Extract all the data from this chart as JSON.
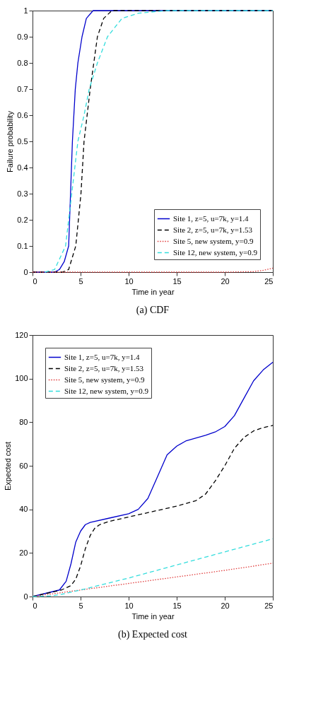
{
  "chart_data": [
    {
      "type": "line",
      "title": "(a) CDF",
      "xlabel": "Time in year",
      "ylabel": "Failure probability",
      "xlim": [
        0,
        25
      ],
      "xticks": [
        0,
        5,
        10,
        15,
        20,
        25
      ],
      "ylim": [
        0,
        1
      ],
      "yticks": [
        0,
        0.1,
        0.2,
        0.3,
        0.4,
        0.5,
        0.6,
        0.7,
        0.8,
        0.9,
        1
      ],
      "grid": false,
      "legend": "bottom right",
      "marker": "none",
      "series": [
        {
          "name": "Site 1, z=5, u=7k, y=1.4",
          "color": "#0000cc",
          "line_style": "solid",
          "x": [
            0,
            2.3,
            2.8,
            3.3,
            3.76,
            4.15,
            4.45,
            4.72,
            5.15,
            5.6,
            6.3,
            25
          ],
          "values": [
            0,
            0,
            0.01,
            0.04,
            0.1,
            0.5,
            0.7,
            0.8,
            0.9,
            0.97,
            1,
            1
          ]
        },
        {
          "name": "Site 2, z=5, u=7k, y=1.53",
          "color": "#000000",
          "line_style": "dashed",
          "x": [
            0,
            3.1,
            3.76,
            4.5,
            5.04,
            5.36,
            6.0,
            6.75,
            7.4,
            8.25,
            25
          ],
          "values": [
            0,
            0,
            0.01,
            0.1,
            0.3,
            0.5,
            0.7,
            0.9,
            0.97,
            1,
            1
          ]
        },
        {
          "name": "Site 5, new system, y=0.9",
          "color": "#e03c3c",
          "line_style": "dotted",
          "x": [
            0,
            20,
            23,
            24,
            25
          ],
          "values": [
            0,
            0,
            0.002,
            0.007,
            0.015
          ]
        },
        {
          "name": "Site 12, new system, y=0.9",
          "color": "#33dddd",
          "line_style": "dashed",
          "x": [
            1.3,
            2.3,
            3.44,
            4.08,
            4.72,
            5.36,
            5.9,
            6.75,
            7.8,
            9.3,
            11,
            14,
            25
          ],
          "values": [
            0,
            0.01,
            0.1,
            0.3,
            0.5,
            0.6,
            0.7,
            0.8,
            0.9,
            0.97,
            0.99,
            1,
            1
          ]
        }
      ]
    },
    {
      "type": "line",
      "title": "(b) Expected cost",
      "xlabel": "Time in year",
      "ylabel": "Expected cost",
      "xlim": [
        0,
        25
      ],
      "xticks": [
        0,
        5,
        10,
        15,
        20,
        25
      ],
      "ylim": [
        0,
        120
      ],
      "yticks": [
        0,
        20,
        40,
        60,
        80,
        100,
        120
      ],
      "grid": false,
      "legend": "top left",
      "marker": "none",
      "series": [
        {
          "name": "Site 1, z=5, u=7k, y=1.4",
          "color": "#0000cc",
          "line_style": "solid",
          "x": [
            0,
            2.8,
            3.5,
            4,
            4.5,
            5,
            5.5,
            6,
            8,
            10,
            11,
            12,
            13,
            14,
            15,
            16,
            18,
            19,
            20,
            21,
            22,
            23,
            24,
            25
          ],
          "values": [
            0,
            3,
            7,
            15,
            25,
            30,
            33,
            34,
            36,
            38,
            40,
            45,
            55,
            65,
            69,
            71.5,
            74,
            75.5,
            78,
            83,
            91,
            99,
            104,
            107.5
          ]
        },
        {
          "name": "Site 2, z=5, u=7k, y=1.53",
          "color": "#000000",
          "line_style": "dashed",
          "x": [
            0,
            3,
            4,
            4.5,
            5,
            5.5,
            6,
            6.5,
            7,
            8,
            10,
            15,
            17,
            18,
            19,
            20,
            21,
            22,
            23,
            24,
            25
          ],
          "values": [
            0,
            3,
            5,
            8,
            14,
            22,
            28,
            31.5,
            33,
            34.5,
            36.5,
            41.5,
            44,
            47,
            53,
            60,
            68,
            73,
            76,
            77.5,
            78.5
          ]
        },
        {
          "name": "Site 5, new system, y=0.9",
          "color": "#e03c3c",
          "line_style": "dotted",
          "x": [
            0,
            5,
            10,
            15,
            20,
            25
          ],
          "values": [
            0,
            3,
            6,
            9,
            12,
            15.3
          ]
        },
        {
          "name": "Site 12, new system, y=0.9",
          "color": "#33dddd",
          "line_style": "dashed",
          "x": [
            0,
            2,
            3,
            5,
            10,
            15,
            20,
            25
          ],
          "values": [
            0,
            0.3,
            1,
            3,
            8.5,
            14.5,
            20.5,
            26.5
          ]
        }
      ]
    }
  ]
}
